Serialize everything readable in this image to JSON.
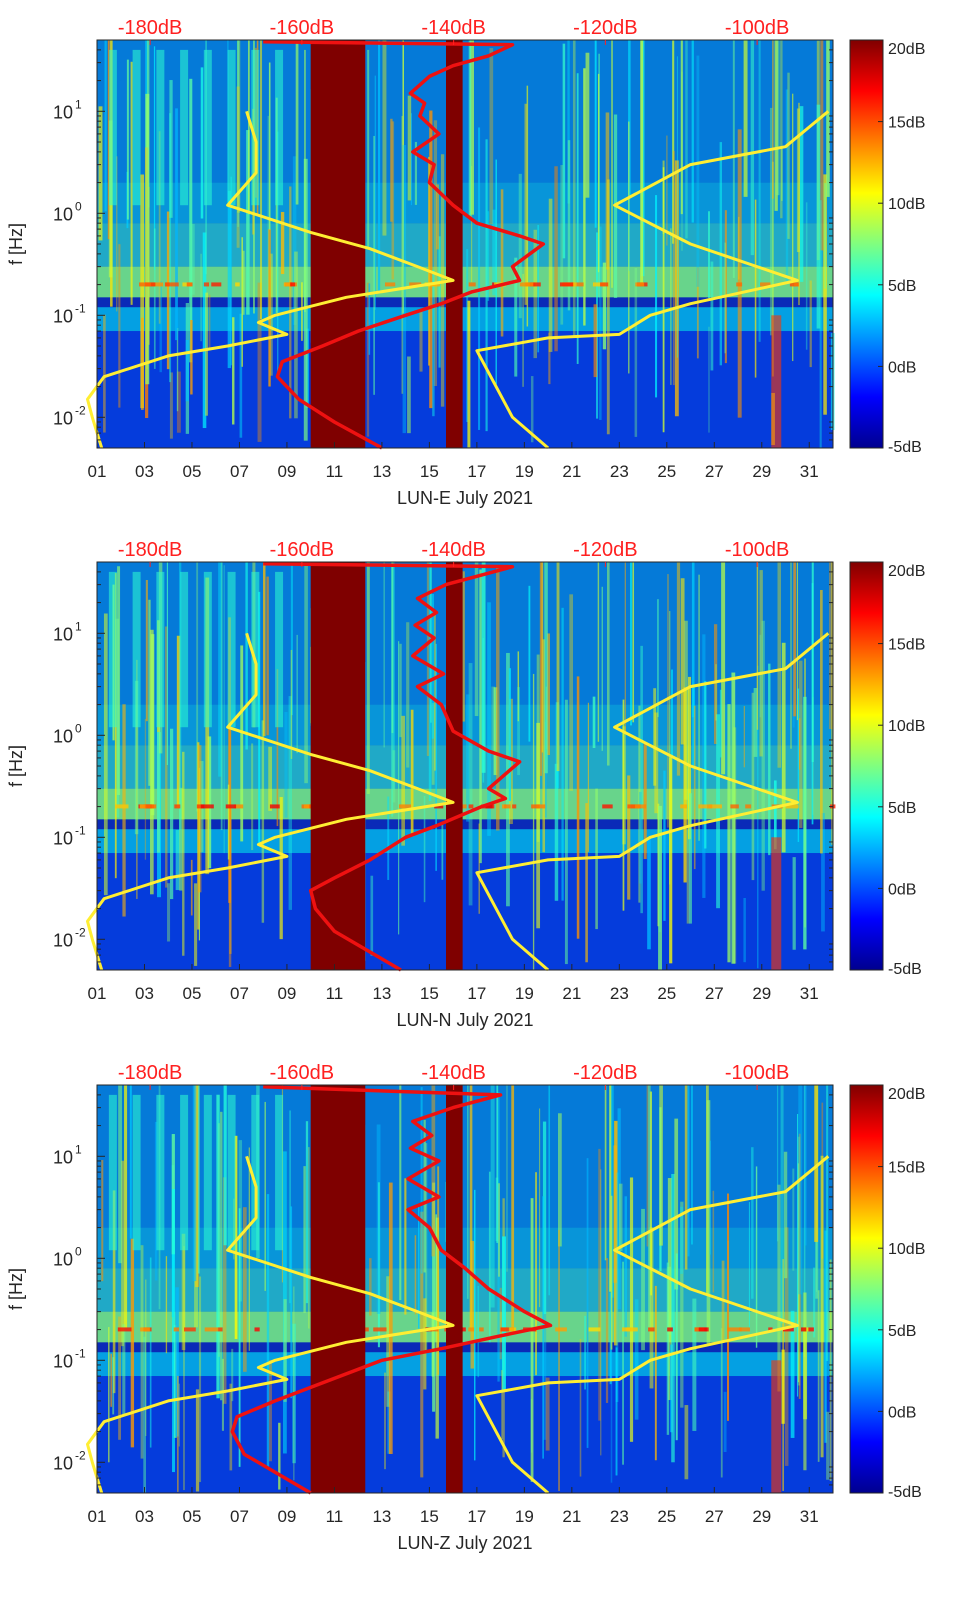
{
  "chart_data": [
    {
      "type": "heatmap",
      "title": "",
      "xlabel": "LUN-E July 2021",
      "ylabel": "f [Hz]",
      "xticks": [
        "01",
        "03",
        "05",
        "07",
        "09",
        "11",
        "13",
        "15",
        "17",
        "19",
        "21",
        "23",
        "25",
        "27",
        "29",
        "31"
      ],
      "xlim": [
        1,
        32
      ],
      "yticks": [
        "10^{-2}",
        "10^{0}",
        "10^{1}",
        "10^{-1}"
      ],
      "ylim": [
        0.005,
        50
      ],
      "colorbar": {
        "ticks": [
          "20dB",
          "15dB",
          "10dB",
          "5dB",
          "0dB",
          "-5dB"
        ],
        "range": [
          -5,
          20
        ],
        "colormap": "jet"
      },
      "top_axis": {
        "ticks": [
          "-180dB",
          "-160dB",
          "-140dB",
          "-120dB",
          "-100dB"
        ],
        "range": [
          -187,
          -90
        ],
        "color": "#ff2020"
      },
      "gaps": [
        {
          "start_day": 10.0,
          "end_day": 12.3
        },
        {
          "start_day": 15.7,
          "end_day": 16.4
        }
      ],
      "series": [
        {
          "name": "model-curve",
          "color": "#ffee33",
          "points": [
            [
              1.2,
              0.005
            ],
            [
              0.8,
              0.01
            ],
            [
              0.6,
              0.015
            ],
            [
              1.3,
              0.025
            ],
            [
              4,
              0.04
            ],
            [
              6.5,
              0.05
            ],
            [
              9.0,
              0.065
            ],
            [
              7.8,
              0.085
            ],
            [
              8.5,
              0.1
            ],
            [
              11.5,
              0.15
            ],
            [
              16,
              0.22
            ],
            [
              14.5,
              0.3
            ],
            [
              12.5,
              0.45
            ],
            [
              10,
              0.65
            ],
            [
              6.5,
              1.2
            ],
            [
              7.7,
              2.5
            ],
            [
              7.7,
              5
            ],
            [
              7.3,
              10
            ]
          ]
        },
        {
          "name": "model-curve-right",
          "color": "#ffee33",
          "points": [
            [
              20,
              0.005
            ],
            [
              18.5,
              0.01
            ],
            [
              17,
              0.045
            ],
            [
              20,
              0.06
            ],
            [
              23,
              0.065
            ],
            [
              24.3,
              0.1
            ],
            [
              26,
              0.13
            ],
            [
              30.5,
              0.22
            ],
            [
              26,
              0.5
            ],
            [
              22.8,
              1.2
            ],
            [
              26,
              3
            ],
            [
              30,
              4.5
            ],
            [
              31.8,
              10
            ]
          ]
        },
        {
          "name": "average-psd",
          "color": "#ee1111",
          "points": [
            [
              13,
              0.005
            ],
            [
              11,
              0.009
            ],
            [
              9.5,
              0.015
            ],
            [
              8.6,
              0.025
            ],
            [
              8.8,
              0.035
            ],
            [
              10.5,
              0.05
            ],
            [
              12,
              0.07
            ],
            [
              14,
              0.1
            ],
            [
              15.5,
              0.13
            ],
            [
              16.8,
              0.17
            ],
            [
              18.8,
              0.22
            ],
            [
              18.5,
              0.3
            ],
            [
              19.8,
              0.5
            ],
            [
              18.8,
              0.6
            ],
            [
              17,
              0.8
            ],
            [
              16,
              1.2
            ],
            [
              15,
              2
            ],
            [
              15.2,
              3
            ],
            [
              14.3,
              4
            ],
            [
              15.4,
              6
            ],
            [
              14.6,
              9
            ],
            [
              14.8,
              12
            ],
            [
              14.2,
              15
            ],
            [
              15,
              22
            ],
            [
              16,
              28
            ],
            [
              17.5,
              35
            ],
            [
              18.5,
              45
            ],
            [
              8,
              48
            ]
          ]
        }
      ]
    },
    {
      "type": "heatmap",
      "title": "",
      "xlabel": "LUN-N July 2021",
      "ylabel": "f [Hz]",
      "xticks": [
        "01",
        "03",
        "05",
        "07",
        "09",
        "11",
        "13",
        "15",
        "17",
        "19",
        "21",
        "23",
        "25",
        "27",
        "29",
        "31"
      ],
      "xlim": [
        1,
        32
      ],
      "yticks": [
        "10^{-2}",
        "10^{0}",
        "10^{1}",
        "10^{-1}"
      ],
      "ylim": [
        0.005,
        50
      ],
      "colorbar": {
        "ticks": [
          "20dB",
          "15dB",
          "10dB",
          "5dB",
          "0dB",
          "-5dB"
        ],
        "range": [
          -5,
          20
        ],
        "colormap": "jet"
      },
      "top_axis": {
        "ticks": [
          "-180dB",
          "-160dB",
          "-140dB",
          "-120dB",
          "-100dB"
        ],
        "range": [
          -187,
          -90
        ],
        "color": "#ff2020"
      },
      "gaps": [
        {
          "start_day": 10.0,
          "end_day": 12.3
        },
        {
          "start_day": 15.7,
          "end_day": 16.4
        }
      ],
      "series": [
        {
          "name": "model-curve",
          "color": "#ffee33",
          "points": [
            [
              1.2,
              0.005
            ],
            [
              0.8,
              0.01
            ],
            [
              0.6,
              0.015
            ],
            [
              1.3,
              0.025
            ],
            [
              4,
              0.04
            ],
            [
              6.5,
              0.05
            ],
            [
              9.0,
              0.065
            ],
            [
              7.8,
              0.085
            ],
            [
              8.5,
              0.1
            ],
            [
              11.5,
              0.15
            ],
            [
              16,
              0.22
            ],
            [
              14.5,
              0.3
            ],
            [
              12.5,
              0.45
            ],
            [
              10,
              0.65
            ],
            [
              6.5,
              1.2
            ],
            [
              7.7,
              2.5
            ],
            [
              7.7,
              5
            ],
            [
              7.3,
              10
            ]
          ]
        },
        {
          "name": "model-curve-right",
          "color": "#ffee33",
          "points": [
            [
              20,
              0.005
            ],
            [
              18.5,
              0.01
            ],
            [
              17,
              0.045
            ],
            [
              20,
              0.06
            ],
            [
              23,
              0.065
            ],
            [
              24.3,
              0.1
            ],
            [
              26,
              0.13
            ],
            [
              30.5,
              0.22
            ],
            [
              26,
              0.5
            ],
            [
              22.8,
              1.2
            ],
            [
              26,
              3
            ],
            [
              30,
              4.5
            ],
            [
              31.8,
              10
            ]
          ]
        },
        {
          "name": "average-psd",
          "color": "#ee1111",
          "points": [
            [
              13.8,
              0.005
            ],
            [
              12.3,
              0.008
            ],
            [
              11,
              0.012
            ],
            [
              10.2,
              0.02
            ],
            [
              10,
              0.03
            ],
            [
              11,
              0.04
            ],
            [
              12.5,
              0.06
            ],
            [
              14,
              0.1
            ],
            [
              15.3,
              0.13
            ],
            [
              17.2,
              0.2
            ],
            [
              18.2,
              0.24
            ],
            [
              17.5,
              0.3
            ],
            [
              18.8,
              0.55
            ],
            [
              17.5,
              0.7
            ],
            [
              16,
              1.1
            ],
            [
              15.5,
              2
            ],
            [
              14.5,
              3
            ],
            [
              15.6,
              4
            ],
            [
              14.3,
              6
            ],
            [
              15.2,
              9
            ],
            [
              14.4,
              12
            ],
            [
              15.3,
              16
            ],
            [
              14.5,
              22
            ],
            [
              15.7,
              30
            ],
            [
              18.5,
              45
            ],
            [
              8,
              48
            ]
          ]
        }
      ]
    },
    {
      "type": "heatmap",
      "title": "",
      "xlabel": "LUN-Z July 2021",
      "ylabel": "f [Hz]",
      "xticks": [
        "01",
        "03",
        "05",
        "07",
        "09",
        "11",
        "13",
        "15",
        "17",
        "19",
        "21",
        "23",
        "25",
        "27",
        "29",
        "31"
      ],
      "xlim": [
        1,
        32
      ],
      "yticks": [
        "10^{-2}",
        "10^{0}",
        "10^{1}",
        "10^{-1}"
      ],
      "ylim": [
        0.005,
        50
      ],
      "colorbar": {
        "ticks": [
          "20dB",
          "15dB",
          "10dB",
          "5dB",
          "0dB",
          "-5dB"
        ],
        "range": [
          -5,
          20
        ],
        "colormap": "jet"
      },
      "top_axis": {
        "ticks": [
          "-180dB",
          "-160dB",
          "-140dB",
          "-120dB",
          "-100dB"
        ],
        "range": [
          -187,
          -90
        ],
        "color": "#ff2020"
      },
      "gaps": [
        {
          "start_day": 10.0,
          "end_day": 12.3
        },
        {
          "start_day": 15.7,
          "end_day": 16.4
        }
      ],
      "series": [
        {
          "name": "model-curve",
          "color": "#ffee33",
          "points": [
            [
              1.2,
              0.005
            ],
            [
              0.8,
              0.01
            ],
            [
              0.6,
              0.015
            ],
            [
              1.3,
              0.025
            ],
            [
              4,
              0.04
            ],
            [
              6.5,
              0.05
            ],
            [
              9.0,
              0.065
            ],
            [
              7.8,
              0.085
            ],
            [
              8.5,
              0.1
            ],
            [
              11.5,
              0.15
            ],
            [
              16,
              0.22
            ],
            [
              14.5,
              0.3
            ],
            [
              12.5,
              0.45
            ],
            [
              10,
              0.65
            ],
            [
              6.5,
              1.2
            ],
            [
              7.7,
              2.5
            ],
            [
              7.7,
              5
            ],
            [
              7.3,
              10
            ]
          ]
        },
        {
          "name": "model-curve-right",
          "color": "#ffee33",
          "points": [
            [
              20,
              0.005
            ],
            [
              18.5,
              0.01
            ],
            [
              17,
              0.045
            ],
            [
              20,
              0.06
            ],
            [
              23,
              0.065
            ],
            [
              24.3,
              0.1
            ],
            [
              26,
              0.13
            ],
            [
              30.5,
              0.22
            ],
            [
              26,
              0.5
            ],
            [
              22.8,
              1.2
            ],
            [
              26,
              3
            ],
            [
              30,
              4.5
            ],
            [
              31.8,
              10
            ]
          ]
        },
        {
          "name": "average-psd",
          "color": "#ee1111",
          "points": [
            [
              10,
              0.005
            ],
            [
              8.5,
              0.008
            ],
            [
              7.2,
              0.012
            ],
            [
              6.7,
              0.02
            ],
            [
              6.9,
              0.028
            ],
            [
              8.5,
              0.04
            ],
            [
              10.5,
              0.06
            ],
            [
              13,
              0.1
            ],
            [
              15.5,
              0.13
            ],
            [
              17.8,
              0.17
            ],
            [
              20.1,
              0.22
            ],
            [
              19,
              0.3
            ],
            [
              17.5,
              0.5
            ],
            [
              16.5,
              0.8
            ],
            [
              15.5,
              1.2
            ],
            [
              15,
              2
            ],
            [
              14.1,
              3
            ],
            [
              15.4,
              4
            ],
            [
              14.1,
              6
            ],
            [
              15.4,
              9
            ],
            [
              14.2,
              12
            ],
            [
              15.1,
              16
            ],
            [
              14.3,
              22
            ],
            [
              16,
              30
            ],
            [
              18,
              40
            ],
            [
              8,
              48
            ]
          ]
        }
      ]
    }
  ]
}
